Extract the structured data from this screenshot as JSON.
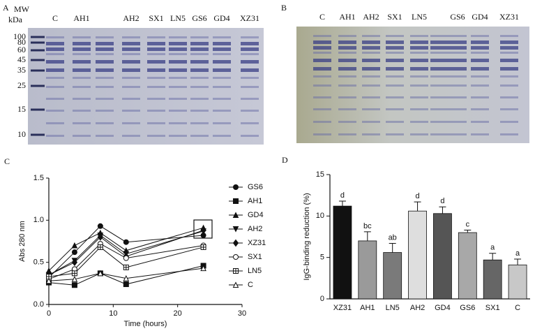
{
  "panel_a": {
    "label": "A",
    "mw_label": "MW",
    "unit_label": "kDa",
    "markers": [
      "100",
      "80",
      "60",
      "45",
      "35",
      "25",
      "15",
      "10"
    ],
    "lanes": [
      "C",
      "AH1",
      "AH2",
      "SX1",
      "LN5",
      "GS6",
      "GD4",
      "XZ31"
    ]
  },
  "panel_b": {
    "label": "B",
    "lanes": [
      "C",
      "AH1",
      "AH2",
      "SX1",
      "LN5",
      "GS6",
      "GD4",
      "XZ31"
    ]
  },
  "chart_data": [
    {
      "type": "line",
      "panel_label": "C",
      "xlabel": "Time (hours)",
      "ylabel": "Abs 280 nm",
      "x": [
        0,
        4,
        8,
        12,
        24
      ],
      "xlim": [
        0,
        30
      ],
      "xticks": [
        0,
        10,
        20,
        30
      ],
      "ylim": [
        0,
        1.5
      ],
      "yticks": [
        {
          "value": 0,
          "label": "0.0"
        },
        0.5,
        {
          "value": 1,
          "label": "1.0"
        },
        1.5
      ],
      "series": [
        {
          "name": "GS6",
          "color": "#111111",
          "marker": "circle",
          "values": [
            0.32,
            0.62,
            0.93,
            0.74,
            0.82
          ]
        },
        {
          "name": "AH1",
          "color": "#111111",
          "marker": "square",
          "values": [
            0.26,
            0.23,
            0.37,
            0.24,
            0.46
          ]
        },
        {
          "name": "GD4",
          "color": "#111111",
          "marker": "triangle",
          "values": [
            0.4,
            0.7,
            0.85,
            0.64,
            0.91
          ]
        },
        {
          "name": "AH2",
          "color": "#111111",
          "marker": "triangle-down",
          "values": [
            0.35,
            0.52,
            0.82,
            0.6,
            0.87
          ]
        },
        {
          "name": "XZ31",
          "color": "#111111",
          "marker": "diamond",
          "values": [
            0.35,
            0.5,
            0.8,
            0.57,
            0.88
          ]
        },
        {
          "name": "SX1",
          "color": "#111111",
          "marker": "circle-open",
          "values": [
            0.3,
            0.42,
            0.72,
            0.55,
            0.7
          ]
        },
        {
          "name": "LN5",
          "color": "#111111",
          "marker": "square-cross",
          "values": [
            0.33,
            0.37,
            0.68,
            0.44,
            0.68
          ]
        },
        {
          "name": "C",
          "color": "#111111",
          "marker": "triangle-open",
          "values": [
            0.28,
            0.3,
            0.37,
            0.31,
            0.43
          ]
        }
      ]
    },
    {
      "type": "bar",
      "panel_label": "D",
      "ylabel": "IgG-binding reduction (%)",
      "categories": [
        "XZ31",
        "AH1",
        "LN5",
        "AH2",
        "GD4",
        "GS6",
        "SX1",
        "C"
      ],
      "values": [
        11.2,
        7.0,
        5.6,
        10.6,
        10.3,
        8.0,
        4.7,
        4.1
      ],
      "errors": [
        0.6,
        1.1,
        1.1,
        1.1,
        0.8,
        0.3,
        0.8,
        0.7
      ],
      "annotations": [
        "d",
        "bc",
        "ab",
        "d",
        "d",
        "c",
        "a",
        "a"
      ],
      "colors": [
        "#111111",
        "#9a9a9a",
        "#7a7a7a",
        "#dedede",
        "#555555",
        "#a8a8a8",
        "#666666",
        "#c8c8c8"
      ],
      "ylim": [
        0,
        15
      ],
      "yticks": [
        0,
        5,
        10,
        15
      ]
    }
  ]
}
